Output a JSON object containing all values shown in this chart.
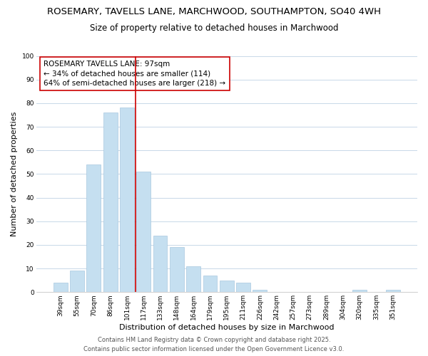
{
  "title": "ROSEMARY, TAVELLS LANE, MARCHWOOD, SOUTHAMPTON, SO40 4WH",
  "subtitle": "Size of property relative to detached houses in Marchwood",
  "xlabel": "Distribution of detached houses by size in Marchwood",
  "ylabel": "Number of detached properties",
  "footer_line1": "Contains HM Land Registry data © Crown copyright and database right 2025.",
  "footer_line2": "Contains public sector information licensed under the Open Government Licence v3.0.",
  "bar_labels": [
    "39sqm",
    "55sqm",
    "70sqm",
    "86sqm",
    "101sqm",
    "117sqm",
    "133sqm",
    "148sqm",
    "164sqm",
    "179sqm",
    "195sqm",
    "211sqm",
    "226sqm",
    "242sqm",
    "257sqm",
    "273sqm",
    "289sqm",
    "304sqm",
    "320sqm",
    "335sqm",
    "351sqm"
  ],
  "bar_values": [
    4,
    9,
    54,
    76,
    78,
    51,
    24,
    19,
    11,
    7,
    5,
    4,
    1,
    0,
    0,
    0,
    0,
    0,
    1,
    0,
    1
  ],
  "bar_color": "#c5dff0",
  "bar_edgecolor": "#a8c8e0",
  "vline_x": 4.5,
  "vline_color": "#cc0000",
  "annotation_text": "ROSEMARY TAVELLS LANE: 97sqm\n← 34% of detached houses are smaller (114)\n64% of semi-detached houses are larger (218) →",
  "annotation_box_color": "#ffffff",
  "annotation_box_edgecolor": "#cc0000",
  "ylim": [
    0,
    100
  ],
  "yticks": [
    0,
    10,
    20,
    30,
    40,
    50,
    60,
    70,
    80,
    90,
    100
  ],
  "background_color": "#ffffff",
  "grid_color": "#c8d8e8",
  "title_fontsize": 9.5,
  "subtitle_fontsize": 8.5,
  "axis_label_fontsize": 8,
  "tick_fontsize": 6.5,
  "annotation_fontsize": 7.5,
  "footer_fontsize": 6
}
